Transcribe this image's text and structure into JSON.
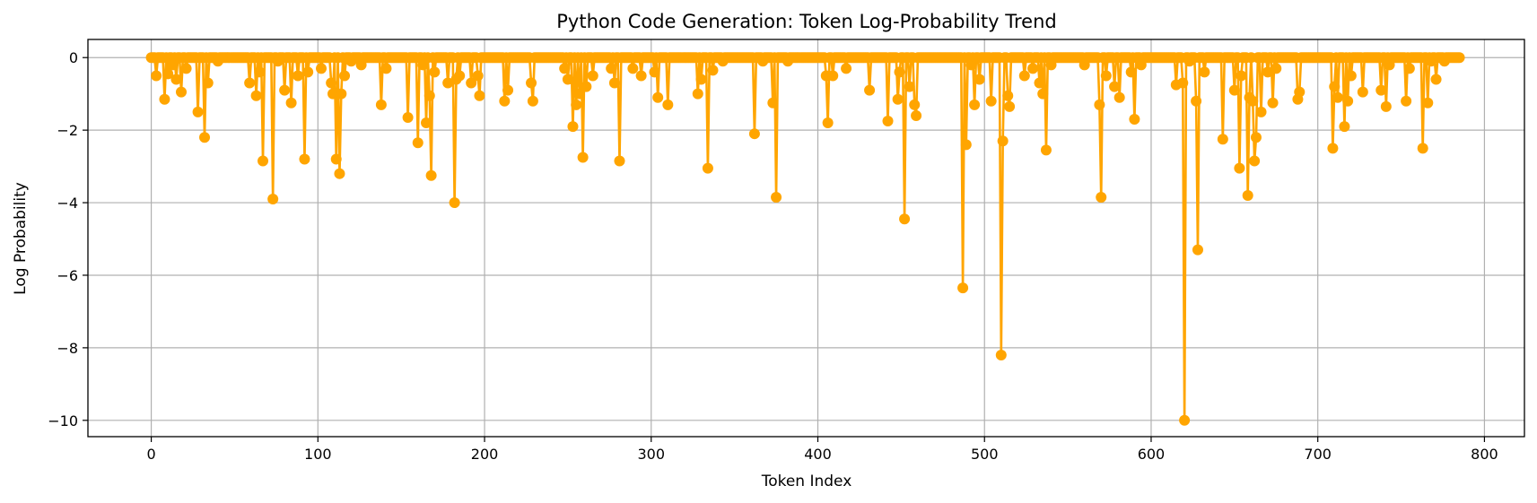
{
  "chart_data": {
    "type": "line",
    "title": "Python Code Generation: Token Log-Probability Trend",
    "xlabel": "Token Index",
    "ylabel": "Log Probability",
    "xlim": [
      -38,
      824
    ],
    "ylim": [
      -10.45,
      0.5
    ],
    "xticks": [
      0,
      100,
      200,
      300,
      400,
      500,
      600,
      700,
      800
    ],
    "yticks": [
      0,
      -2,
      -4,
      -6,
      -8,
      -10
    ],
    "ytick_labels": [
      "0",
      "−2",
      "−4",
      "−6",
      "−8",
      "−10"
    ],
    "grid": true,
    "marker": "circle",
    "color": "#FFA500",
    "num_points": 786,
    "x_start": 0,
    "dips": [
      [
        3,
        -0.5
      ],
      [
        8,
        -1.15
      ],
      [
        10,
        -0.45
      ],
      [
        13,
        -0.2
      ],
      [
        15,
        -0.6
      ],
      [
        18,
        -0.95
      ],
      [
        21,
        -0.3
      ],
      [
        28,
        -1.5
      ],
      [
        32,
        -2.2
      ],
      [
        34,
        -0.7
      ],
      [
        40,
        -0.1
      ],
      [
        59,
        -0.7
      ],
      [
        63,
        -1.05
      ],
      [
        65,
        -0.4
      ],
      [
        67,
        -2.85
      ],
      [
        73,
        -3.9
      ],
      [
        76,
        -0.1
      ],
      [
        80,
        -0.9
      ],
      [
        84,
        -1.25
      ],
      [
        88,
        -0.5
      ],
      [
        92,
        -2.8
      ],
      [
        94,
        -0.4
      ],
      [
        102,
        -0.3
      ],
      [
        108,
        -0.7
      ],
      [
        109,
        -1.0
      ],
      [
        111,
        -2.8
      ],
      [
        113,
        -3.2
      ],
      [
        114,
        -1.0
      ],
      [
        116,
        -0.5
      ],
      [
        120,
        -0.1
      ],
      [
        126,
        -0.2
      ],
      [
        138,
        -1.3
      ],
      [
        141,
        -0.3
      ],
      [
        154,
        -1.65
      ],
      [
        160,
        -2.35
      ],
      [
        163,
        -0.2
      ],
      [
        165,
        -1.8
      ],
      [
        167,
        -1.05
      ],
      [
        168,
        -3.25
      ],
      [
        170,
        -0.4
      ],
      [
        178,
        -0.7
      ],
      [
        182,
        -4.0
      ],
      [
        183,
        -0.6
      ],
      [
        185,
        -0.5
      ],
      [
        192,
        -0.7
      ],
      [
        196,
        -0.5
      ],
      [
        197,
        -1.05
      ],
      [
        212,
        -1.2
      ],
      [
        214,
        -0.9
      ],
      [
        228,
        -0.7
      ],
      [
        229,
        -1.2
      ],
      [
        248,
        -0.3
      ],
      [
        250,
        -0.6
      ],
      [
        253,
        -1.9
      ],
      [
        255,
        -1.3
      ],
      [
        257,
        -1.0
      ],
      [
        259,
        -2.75
      ],
      [
        261,
        -0.8
      ],
      [
        265,
        -0.5
      ],
      [
        276,
        -0.3
      ],
      [
        278,
        -0.7
      ],
      [
        281,
        -2.85
      ],
      [
        289,
        -0.3
      ],
      [
        294,
        -0.5
      ],
      [
        302,
        -0.4
      ],
      [
        304,
        -1.1
      ],
      [
        310,
        -1.3
      ],
      [
        328,
        -1.0
      ],
      [
        330,
        -0.6
      ],
      [
        334,
        -3.05
      ],
      [
        337,
        -0.35
      ],
      [
        343,
        -0.1
      ],
      [
        362,
        -2.1
      ],
      [
        367,
        -0.1
      ],
      [
        373,
        -1.25
      ],
      [
        375,
        -3.85
      ],
      [
        382,
        -0.1
      ],
      [
        405,
        -0.5
      ],
      [
        406,
        -1.8
      ],
      [
        409,
        -0.5
      ],
      [
        417,
        -0.3
      ],
      [
        431,
        -0.9
      ],
      [
        442,
        -1.75
      ],
      [
        448,
        -1.15
      ],
      [
        449,
        -0.4
      ],
      [
        452,
        -4.45
      ],
      [
        455,
        -0.8
      ],
      [
        458,
        -1.3
      ],
      [
        459,
        -1.6
      ],
      [
        487,
        -6.35
      ],
      [
        489,
        -2.4
      ],
      [
        492,
        -0.2
      ],
      [
        494,
        -1.3
      ],
      [
        497,
        -0.6
      ],
      [
        504,
        -1.2
      ],
      [
        510,
        -8.2
      ],
      [
        511,
        -2.3
      ],
      [
        514,
        -1.05
      ],
      [
        515,
        -1.35
      ],
      [
        524,
        -0.5
      ],
      [
        529,
        -0.3
      ],
      [
        533,
        -0.7
      ],
      [
        535,
        -1.0
      ],
      [
        537,
        -2.55
      ],
      [
        540,
        -0.2
      ],
      [
        560,
        -0.2
      ],
      [
        569,
        -1.3
      ],
      [
        570,
        -3.85
      ],
      [
        573,
        -0.5
      ],
      [
        578,
        -0.8
      ],
      [
        581,
        -1.1
      ],
      [
        588,
        -0.4
      ],
      [
        590,
        -1.7
      ],
      [
        594,
        -0.2
      ],
      [
        615,
        -0.75
      ],
      [
        619,
        -0.7
      ],
      [
        620,
        -10.0
      ],
      [
        623,
        -0.1
      ],
      [
        627,
        -1.2
      ],
      [
        628,
        -5.3
      ],
      [
        632,
        -0.4
      ],
      [
        643,
        -2.25
      ],
      [
        650,
        -0.9
      ],
      [
        653,
        -3.05
      ],
      [
        654,
        -0.5
      ],
      [
        658,
        -3.8
      ],
      [
        659,
        -1.1
      ],
      [
        661,
        -1.2
      ],
      [
        662,
        -2.85
      ],
      [
        663,
        -2.2
      ],
      [
        666,
        -1.5
      ],
      [
        670,
        -0.4
      ],
      [
        673,
        -1.25
      ],
      [
        675,
        -0.3
      ],
      [
        688,
        -1.15
      ],
      [
        689,
        -0.95
      ],
      [
        709,
        -2.5
      ],
      [
        710,
        -0.8
      ],
      [
        712,
        -1.1
      ],
      [
        716,
        -1.9
      ],
      [
        718,
        -1.2
      ],
      [
        720,
        -0.5
      ],
      [
        727,
        -0.95
      ],
      [
        738,
        -0.9
      ],
      [
        741,
        -1.35
      ],
      [
        743,
        -0.2
      ],
      [
        753,
        -1.2
      ],
      [
        755,
        -0.3
      ],
      [
        763,
        -2.5
      ],
      [
        766,
        -1.25
      ],
      [
        768,
        -0.1
      ],
      [
        771,
        -0.6
      ],
      [
        776,
        -0.1
      ]
    ]
  }
}
